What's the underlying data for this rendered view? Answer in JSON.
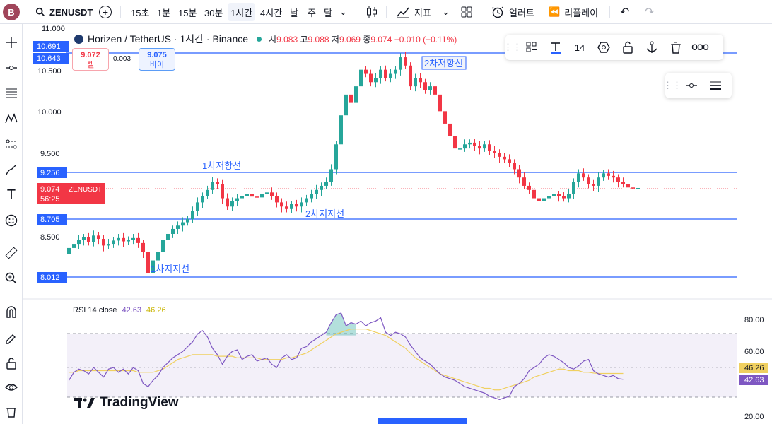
{
  "user": {
    "initial": "B"
  },
  "toolbar": {
    "symbol": "ZENUSDT",
    "timeframes": [
      "15초",
      "1분",
      "15분",
      "30분",
      "1시간",
      "4시간",
      "날",
      "주",
      "달"
    ],
    "active_timeframe": "1시간",
    "indicators_label": "지표",
    "alerts_label": "얼러트",
    "replay_label": "리플레이"
  },
  "legend": {
    "title": "Horizen / TetherUS · 1시간 · Binance",
    "open_label": "시",
    "open": "9.083",
    "high_label": "고",
    "high": "9.088",
    "low_label": "저",
    "low": "9.069",
    "close_label": "종",
    "close": "9.074",
    "change": "−0.010 (−0.11%)"
  },
  "trade": {
    "sell_price": "9.072",
    "sell_label": "셀",
    "spread": "0.003",
    "buy_price": "9.075",
    "buy_label": "바이"
  },
  "drawing_toolbar": {
    "font_size": "14"
  },
  "price_axis": {
    "ticks": [
      "11.000",
      "10.500",
      "10.000",
      "9.500",
      "8.500"
    ],
    "line_tags": [
      "10.691",
      "10.643",
      "9.256",
      "8.705",
      "8.012"
    ],
    "current_price": "9.074",
    "current_symbol": "ZENUSDT",
    "countdown": "56:25"
  },
  "annotations": {
    "res2": "2차저항선",
    "res1": "1차저항선",
    "sup2": "2차지지선",
    "sup1": "1차지지선"
  },
  "rsi": {
    "label": "RSI",
    "params": "14 close",
    "value": "42.63",
    "ma_value": "46.26",
    "ticks": [
      "80.00",
      "60.00",
      "20.00"
    ],
    "partial_tick": "40.00"
  },
  "brand": {
    "name": "TradingView"
  },
  "colors": {
    "up": "#26a69a",
    "down": "#f23645",
    "line": "#2962ff",
    "rsi": "#7e57c2",
    "rsi_ma": "#f0d060"
  }
}
